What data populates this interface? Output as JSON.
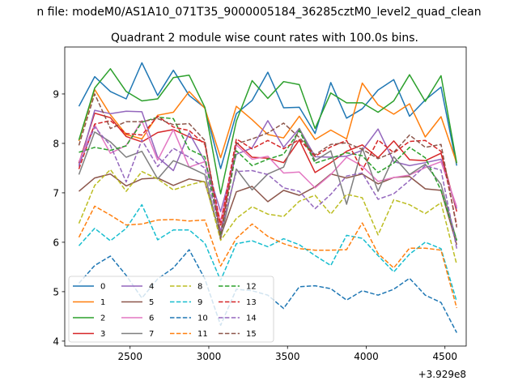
{
  "chart_data": {
    "type": "line",
    "suptitle": "n file: modeM0/AS1A10_071T35_9000005184_36285cztM0_level2_quad_clean",
    "title": "Quadrant 2 module wise count rates with 100.0s bins.",
    "xlabel": "",
    "ylabel": "",
    "x_offset_label": "+3.929e8",
    "xlim": [
      2085,
      4635
    ],
    "ylim": [
      3.9,
      9.95
    ],
    "xticks": [
      2500,
      3000,
      3500,
      4000,
      4500
    ],
    "yticks": [
      4,
      5,
      6,
      7,
      8,
      9
    ],
    "grid": false,
    "legend": {
      "position": "lower-left",
      "columns": 4
    },
    "x": [
      2175,
      2275,
      2375,
      2475,
      2575,
      2675,
      2775,
      2875,
      2975,
      3075,
      3175,
      3275,
      3375,
      3475,
      3575,
      3675,
      3775,
      3875,
      3975,
      4075,
      4175,
      4275,
      4375,
      4475,
      4575
    ],
    "series": [
      {
        "name": "0",
        "color": "#1f77b4",
        "dash": "solid",
        "values": [
          8.75,
          9.35,
          9.05,
          8.9,
          9.63,
          8.97,
          9.48,
          8.97,
          8.72,
          7.49,
          8.6,
          8.87,
          9.44,
          8.72,
          8.73,
          8.2,
          9.23,
          8.51,
          8.7,
          9.08,
          9.29,
          8.55,
          8.88,
          9.14,
          7.55
        ]
      },
      {
        "name": "1",
        "color": "#ff7f0e",
        "dash": "solid",
        "values": [
          8.05,
          9.09,
          8.58,
          8.18,
          8.09,
          8.57,
          8.63,
          9.05,
          8.71,
          7.71,
          8.75,
          8.48,
          8.18,
          8.11,
          8.55,
          8.08,
          8.27,
          8.09,
          9.22,
          8.78,
          8.59,
          8.8,
          8.13,
          8.54,
          7.6
        ]
      },
      {
        "name": "2",
        "color": "#2ca02c",
        "dash": "solid",
        "values": [
          8.07,
          9.12,
          9.51,
          9.05,
          8.86,
          8.9,
          9.33,
          9.38,
          8.73,
          6.98,
          8.45,
          9.27,
          8.91,
          9.25,
          9.19,
          8.3,
          9.02,
          8.82,
          8.82,
          8.63,
          8.86,
          9.39,
          8.85,
          9.37,
          7.6
        ]
      },
      {
        "name": "3",
        "color": "#d62728",
        "dash": "solid",
        "values": [
          7.6,
          8.61,
          8.52,
          8.14,
          8.03,
          8.22,
          8.28,
          8.13,
          8.02,
          6.18,
          8.02,
          7.72,
          7.7,
          7.61,
          8.07,
          7.41,
          7.61,
          7.84,
          7.97,
          7.71,
          8.05,
          7.67,
          7.65,
          7.8,
          6.62
        ]
      },
      {
        "name": "4",
        "color": "#9467bd",
        "dash": "solid",
        "values": [
          7.53,
          8.67,
          8.6,
          8.65,
          8.64,
          7.72,
          7.45,
          8.21,
          7.64,
          6.62,
          7.78,
          7.91,
          8.46,
          7.92,
          8.3,
          7.73,
          7.72,
          7.74,
          7.86,
          8.29,
          7.63,
          7.55,
          7.61,
          7.68,
          6.68
        ]
      },
      {
        "name": "5",
        "color": "#8c564b",
        "dash": "solid",
        "values": [
          7.03,
          7.3,
          7.38,
          7.14,
          7.28,
          7.3,
          7.15,
          7.28,
          7.22,
          6.12,
          7.02,
          7.13,
          6.82,
          7.05,
          6.95,
          7.12,
          7.38,
          7.3,
          7.38,
          7.18,
          7.31,
          7.33,
          7.08,
          7.05,
          5.95
        ]
      },
      {
        "name": "6",
        "color": "#e377c2",
        "dash": "solid",
        "values": [
          7.63,
          8.38,
          7.8,
          7.96,
          8.46,
          7.66,
          8.28,
          7.52,
          7.63,
          6.42,
          7.97,
          7.68,
          7.74,
          7.4,
          7.42,
          7.1,
          7.37,
          7.72,
          7.54,
          7.23,
          7.31,
          7.36,
          7.51,
          7.63,
          6.72
        ]
      },
      {
        "name": "7",
        "color": "#7f7f7f",
        "dash": "solid",
        "values": [
          7.37,
          8.23,
          8.03,
          7.72,
          7.84,
          7.28,
          7.65,
          7.52,
          7.37,
          6.07,
          7.48,
          7.06,
          7.38,
          7.52,
          8.3,
          7.65,
          7.85,
          6.77,
          7.91,
          7.03,
          7.73,
          7.37,
          7.58,
          7.17,
          6.03
        ]
      },
      {
        "name": "8",
        "color": "#bcbd22",
        "dash": "dashed",
        "values": [
          6.38,
          7.15,
          7.47,
          7.03,
          7.43,
          7.28,
          7.06,
          7.16,
          7.24,
          6.04,
          6.48,
          6.72,
          6.57,
          6.52,
          6.83,
          6.95,
          6.57,
          6.97,
          6.9,
          6.15,
          6.86,
          6.76,
          6.58,
          6.8,
          5.55
        ]
      },
      {
        "name": "9",
        "color": "#17becf",
        "dash": "dashed",
        "values": [
          5.93,
          6.28,
          6.03,
          6.28,
          6.76,
          6.05,
          6.25,
          6.25,
          5.98,
          5.23,
          5.97,
          6.03,
          5.91,
          6.07,
          5.95,
          5.73,
          5.53,
          6.14,
          6.08,
          5.73,
          5.4,
          5.76,
          6.0,
          5.87,
          4.8
        ]
      },
      {
        "name": "10",
        "color": "#1f77b4",
        "dash": "dashed",
        "values": [
          5.17,
          5.53,
          5.72,
          5.33,
          4.87,
          5.26,
          5.48,
          5.85,
          5.26,
          4.32,
          5.05,
          5.02,
          4.93,
          4.66,
          5.1,
          5.12,
          5.06,
          4.83,
          5.02,
          4.93,
          5.05,
          5.27,
          4.93,
          4.78,
          4.17
        ]
      },
      {
        "name": "11",
        "color": "#ff7f0e",
        "dash": "dashed",
        "values": [
          6.1,
          6.73,
          6.55,
          6.35,
          6.37,
          6.45,
          6.46,
          6.43,
          6.45,
          5.52,
          6.08,
          6.37,
          6.12,
          5.97,
          5.87,
          5.84,
          5.84,
          5.85,
          6.39,
          5.77,
          5.48,
          5.88,
          5.88,
          5.84,
          4.67
        ]
      },
      {
        "name": "12",
        "color": "#2ca02c",
        "dash": "dashed",
        "values": [
          7.82,
          7.92,
          7.86,
          7.95,
          8.43,
          8.53,
          8.5,
          7.88,
          7.73,
          6.14,
          7.85,
          7.55,
          7.68,
          7.78,
          8.26,
          7.6,
          7.7,
          7.81,
          7.75,
          7.41,
          7.6,
          7.92,
          7.71,
          7.05,
          6.04
        ]
      },
      {
        "name": "13",
        "color": "#d62728",
        "dash": "dashed",
        "values": [
          7.48,
          8.39,
          8.46,
          8.2,
          8.17,
          8.55,
          8.33,
          8.26,
          7.98,
          6.35,
          8.09,
          7.89,
          8.06,
          7.89,
          8.08,
          7.74,
          7.93,
          8.06,
          7.46,
          8.07,
          7.81,
          8.04,
          8.06,
          7.84,
          6.35
        ]
      },
      {
        "name": "14",
        "color": "#9467bd",
        "dash": "dashed",
        "values": [
          7.57,
          8.33,
          7.96,
          7.22,
          8.07,
          7.53,
          7.9,
          7.72,
          7.5,
          6.22,
          7.43,
          7.45,
          7.37,
          7.1,
          7.03,
          6.68,
          6.97,
          7.34,
          7.4,
          6.87,
          6.98,
          7.25,
          7.55,
          7.46,
          5.87
        ]
      },
      {
        "name": "15",
        "color": "#8c564b",
        "dash": "dashed",
        "values": [
          7.96,
          9.0,
          8.3,
          8.44,
          8.44,
          8.5,
          8.38,
          8.4,
          8.06,
          6.07,
          7.99,
          8.09,
          8.21,
          8.41,
          8.12,
          7.77,
          7.98,
          8.01,
          7.88,
          7.69,
          7.82,
          8.17,
          7.92,
          7.98,
          6.3
        ]
      }
    ]
  }
}
